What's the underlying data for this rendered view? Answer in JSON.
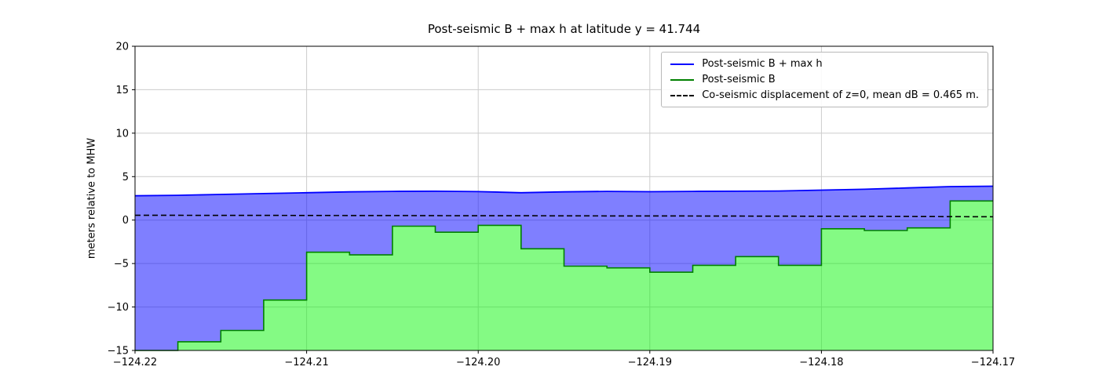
{
  "page": {
    "background": "#ffffff"
  },
  "chart_data": {
    "type": "line",
    "title": "Post-seismic B + max h at latitude y = 41.744",
    "xlabel": "",
    "ylabel": "meters relative to MHW",
    "xlim": [
      -124.22,
      -124.17
    ],
    "ylim": [
      -15,
      20
    ],
    "grid": true,
    "colors": {
      "grid": "#cccccc",
      "frame": "#000000",
      "tick_text": "#000000"
    },
    "xticks": {
      "values": [
        -124.22,
        -124.21,
        -124.2,
        -124.19,
        -124.18,
        -124.17
      ],
      "labels": [
        "−124.22",
        "−124.21",
        "−124.20",
        "−124.19",
        "−124.18",
        "−124.17"
      ]
    },
    "yticks": {
      "values": [
        20,
        15,
        10,
        5,
        0,
        -5,
        -10,
        -15
      ],
      "labels": [
        "20",
        "15",
        "10",
        "5",
        "0",
        "−5",
        "−10",
        "−15"
      ]
    },
    "legend": {
      "position": "upper right",
      "entries": [
        {
          "label": "Post-seismic B + max h",
          "color": "#0000ff",
          "style": "solid"
        },
        {
          "label": "Post-seismic B",
          "color": "#008000",
          "style": "solid"
        },
        {
          "label": "Co-seismic displacement of z=0, mean dB = 0.465 m.",
          "color": "#000000",
          "style": "dashed"
        }
      ]
    },
    "x_edges": [
      -124.22,
      -124.2175,
      -124.215,
      -124.2125,
      -124.21,
      -124.2075,
      -124.205,
      -124.2025,
      -124.2,
      -124.1975,
      -124.195,
      -124.1925,
      -124.19,
      -124.1875,
      -124.185,
      -124.1825,
      -124.18,
      -124.1775,
      -124.175,
      -124.1725,
      -124.17
    ],
    "series": [
      {
        "name": "Post-seismic B + max h",
        "type": "line",
        "color": "#0000ff",
        "fill": "rgba(0,0,255,0.5)",
        "values": [
          2.8,
          2.85,
          2.95,
          3.05,
          3.15,
          3.25,
          3.3,
          3.32,
          3.28,
          3.15,
          3.25,
          3.3,
          3.27,
          3.3,
          3.32,
          3.35,
          3.45,
          3.55,
          3.7,
          3.85,
          3.9
        ]
      },
      {
        "name": "Post-seismic B",
        "type": "step",
        "color": "#008000",
        "fill": "rgba(10,245,10,0.5)",
        "values": [
          -15,
          -14,
          -12.7,
          -9.2,
          -3.7,
          -4.0,
          -0.7,
          -1.4,
          -0.6,
          -3.3,
          -5.3,
          -5.5,
          -6.0,
          -5.2,
          -4.2,
          -5.2,
          -1.0,
          -1.2,
          -0.9,
          2.2
        ]
      },
      {
        "name": "Co-seismic displacement of z=0, mean dB = 0.465 m.",
        "type": "dashed-line",
        "color": "#000000",
        "values": [
          0.55,
          0.55,
          0.54,
          0.54,
          0.53,
          0.52,
          0.52,
          0.51,
          0.5,
          0.5,
          0.49,
          0.48,
          0.48,
          0.47,
          0.46,
          0.45,
          0.44,
          0.43,
          0.42,
          0.4,
          0.38
        ]
      }
    ]
  }
}
